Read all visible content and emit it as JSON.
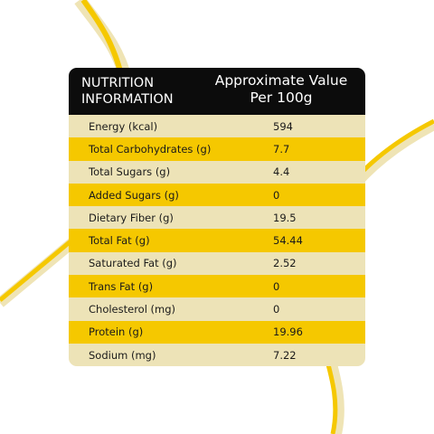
{
  "header": {
    "column_1": [
      "NUTRITION",
      "INFORMATION"
    ],
    "column_2": [
      "Approximate Value",
      "Per 100g"
    ]
  },
  "table": {
    "rows": [
      [
        "Energy (kcal)",
        "594"
      ],
      [
        "Total Carbohydrates (g)",
        "7.7"
      ],
      [
        "Total Sugars (g)",
        "4.4"
      ],
      [
        "Added Sugars (g)",
        "0"
      ],
      [
        "Dietary Fiber (g)",
        "19.5"
      ],
      [
        "Total Fat (g)",
        "54.44"
      ],
      [
        "Saturated Fat (g)",
        "2.52"
      ],
      [
        "Trans Fat (g)",
        "0"
      ],
      [
        "Cholesterol (mg)",
        "0"
      ],
      [
        "Protein (g)",
        "19.96"
      ],
      [
        "Sodium (mg)",
        "7.22"
      ]
    ]
  }
}
